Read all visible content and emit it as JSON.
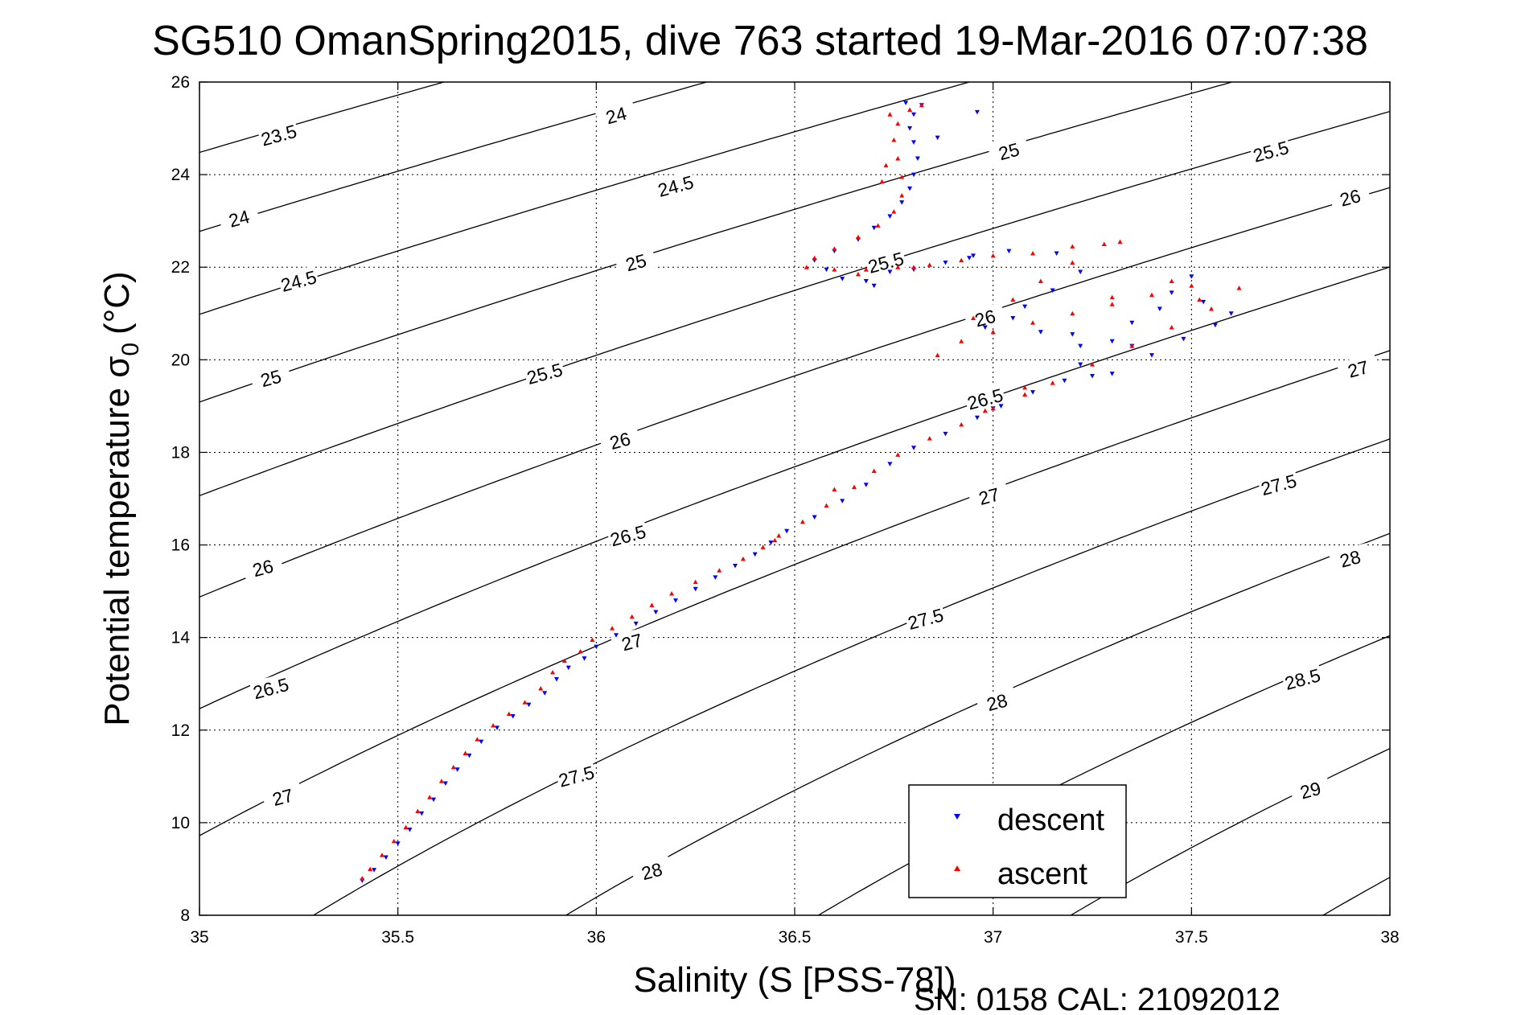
{
  "chart_data": {
    "type": "scatter",
    "title": "SG510 OmanSpring2015, dive 763 started 19-Mar-2016 07:07:38",
    "xlabel": "Salinity (S [PSS-78])",
    "ylabel_main": "Potential temperature σ",
    "ylabel_sub": "0",
    "ylabel_unit": "(°C)",
    "footer": "SN: 0158  CAL: 21092012",
    "xlim": [
      35,
      38
    ],
    "ylim": [
      8,
      26
    ],
    "xticks": [
      "35",
      "35.5",
      "36",
      "36.5",
      "37",
      "37.5",
      "38"
    ],
    "yticks": [
      "8",
      "10",
      "12",
      "14",
      "16",
      "18",
      "20",
      "22",
      "24",
      "26"
    ],
    "grid": true,
    "legend_position": "bottom-right",
    "contour_labels": [
      {
        "text": "23.5",
        "s": 35.2,
        "t": 24.85
      },
      {
        "text": "24",
        "s": 36.05,
        "t": 25.28
      },
      {
        "text": "24",
        "s": 35.1,
        "t": 23.05
      },
      {
        "text": "24.5",
        "s": 36.2,
        "t": 23.75
      },
      {
        "text": "24.5",
        "s": 35.25,
        "t": 21.7
      },
      {
        "text": "25",
        "s": 37.04,
        "t": 24.5
      },
      {
        "text": "25",
        "s": 36.1,
        "t": 22.1
      },
      {
        "text": "25",
        "s": 35.18,
        "t": 19.6
      },
      {
        "text": "25.5",
        "s": 37.7,
        "t": 24.5
      },
      {
        "text": "25.5",
        "s": 36.73,
        "t": 22.1
      },
      {
        "text": "25.5",
        "s": 35.87,
        "t": 19.7
      },
      {
        "text": "26",
        "s": 37.9,
        "t": 23.5
      },
      {
        "text": "26",
        "s": 36.98,
        "t": 20.9
      },
      {
        "text": "26",
        "s": 36.06,
        "t": 18.25
      },
      {
        "text": "26",
        "s": 35.16,
        "t": 15.5
      },
      {
        "text": "26.5",
        "s": 36.98,
        "t": 19.15
      },
      {
        "text": "26.5",
        "s": 36.08,
        "t": 16.2
      },
      {
        "text": "26.5",
        "s": 35.18,
        "t": 12.9
      },
      {
        "text": "27",
        "s": 37.92,
        "t": 19.8
      },
      {
        "text": "27",
        "s": 36.99,
        "t": 17.05
      },
      {
        "text": "27",
        "s": 36.09,
        "t": 13.9
      },
      {
        "text": "27",
        "s": 35.21,
        "t": 10.55
      },
      {
        "text": "27.5",
        "s": 37.72,
        "t": 17.3
      },
      {
        "text": "27.5",
        "s": 36.83,
        "t": 14.4
      },
      {
        "text": "27.5",
        "s": 35.95,
        "t": 11.0
      },
      {
        "text": "28",
        "s": 37.9,
        "t": 15.7
      },
      {
        "text": "28",
        "s": 37.01,
        "t": 12.6
      },
      {
        "text": "28",
        "s": 36.14,
        "t": 8.95
      },
      {
        "text": "28.5",
        "s": 37.78,
        "t": 13.1
      },
      {
        "text": "29",
        "s": 37.8,
        "t": 10.7
      }
    ],
    "series": [
      {
        "name": "descent",
        "color": "#0000ff",
        "marker": "triangle-down",
        "points": [
          [
            35.41,
            8.75
          ],
          [
            35.44,
            8.98
          ],
          [
            35.47,
            9.25
          ],
          [
            35.5,
            9.55
          ],
          [
            35.53,
            9.85
          ],
          [
            35.56,
            10.2
          ],
          [
            35.59,
            10.5
          ],
          [
            35.62,
            10.85
          ],
          [
            35.65,
            11.15
          ],
          [
            35.68,
            11.45
          ],
          [
            35.71,
            11.75
          ],
          [
            35.75,
            12.05
          ],
          [
            35.79,
            12.3
          ],
          [
            35.83,
            12.55
          ],
          [
            35.87,
            12.8
          ],
          [
            35.9,
            13.1
          ],
          [
            35.93,
            13.35
          ],
          [
            35.97,
            13.55
          ],
          [
            36.0,
            13.8
          ],
          [
            36.05,
            14.05
          ],
          [
            36.1,
            14.3
          ],
          [
            36.15,
            14.55
          ],
          [
            36.2,
            14.8
          ],
          [
            36.25,
            15.05
          ],
          [
            36.3,
            15.3
          ],
          [
            36.35,
            15.55
          ],
          [
            36.4,
            15.8
          ],
          [
            36.44,
            16.05
          ],
          [
            36.48,
            16.3
          ],
          [
            36.55,
            16.6
          ],
          [
            36.62,
            16.95
          ],
          [
            36.68,
            17.3
          ],
          [
            36.74,
            17.75
          ],
          [
            36.8,
            18.1
          ],
          [
            36.88,
            18.4
          ],
          [
            36.96,
            18.75
          ],
          [
            37.02,
            19.0
          ],
          [
            37.1,
            19.3
          ],
          [
            37.18,
            19.55
          ],
          [
            37.3,
            19.7
          ],
          [
            37.4,
            20.1
          ],
          [
            37.48,
            20.45
          ],
          [
            37.56,
            20.75
          ],
          [
            37.6,
            21.0
          ],
          [
            37.53,
            21.25
          ],
          [
            37.45,
            21.45
          ],
          [
            37.5,
            21.8
          ],
          [
            37.42,
            21.1
          ],
          [
            37.35,
            20.8
          ],
          [
            37.3,
            20.4
          ],
          [
            37.22,
            20.3
          ],
          [
            37.12,
            20.6
          ],
          [
            37.05,
            20.9
          ],
          [
            36.98,
            20.7
          ],
          [
            37.08,
            21.15
          ],
          [
            37.15,
            21.5
          ],
          [
            37.22,
            21.9
          ],
          [
            37.16,
            22.3
          ],
          [
            37.04,
            22.35
          ],
          [
            36.95,
            22.25
          ],
          [
            36.88,
            22.1
          ],
          [
            36.8,
            21.95
          ],
          [
            36.74,
            21.9
          ],
          [
            36.68,
            21.7
          ],
          [
            36.62,
            21.75
          ],
          [
            36.58,
            21.95
          ],
          [
            36.55,
            22.15
          ],
          [
            36.6,
            22.35
          ],
          [
            36.66,
            22.6
          ],
          [
            36.7,
            22.85
          ],
          [
            36.74,
            23.1
          ],
          [
            36.77,
            23.4
          ],
          [
            36.79,
            23.7
          ],
          [
            36.8,
            24.0
          ],
          [
            36.81,
            24.35
          ],
          [
            36.8,
            24.7
          ],
          [
            36.79,
            25.0
          ],
          [
            36.8,
            25.3
          ],
          [
            36.82,
            25.5
          ],
          [
            36.78,
            25.55
          ],
          [
            36.96,
            25.35
          ],
          [
            36.86,
            24.8
          ],
          [
            36.7,
            21.6
          ],
          [
            36.94,
            22.2
          ],
          [
            37.0,
            18.95
          ],
          [
            37.25,
            19.65
          ],
          [
            37.22,
            19.9
          ],
          [
            37.35,
            20.3
          ],
          [
            37.2,
            20.55
          ]
        ]
      },
      {
        "name": "ascent",
        "color": "#ff0000",
        "marker": "triangle-up",
        "points": [
          [
            35.41,
            8.8
          ],
          [
            35.43,
            9.0
          ],
          [
            35.46,
            9.3
          ],
          [
            35.49,
            9.6
          ],
          [
            35.52,
            9.9
          ],
          [
            35.55,
            10.25
          ],
          [
            35.58,
            10.55
          ],
          [
            35.61,
            10.9
          ],
          [
            35.64,
            11.2
          ],
          [
            35.67,
            11.5
          ],
          [
            35.7,
            11.8
          ],
          [
            35.74,
            12.1
          ],
          [
            35.78,
            12.35
          ],
          [
            35.82,
            12.6
          ],
          [
            35.86,
            12.9
          ],
          [
            35.89,
            13.25
          ],
          [
            35.92,
            13.5
          ],
          [
            35.96,
            13.7
          ],
          [
            35.99,
            13.95
          ],
          [
            36.04,
            14.2
          ],
          [
            36.09,
            14.45
          ],
          [
            36.14,
            14.7
          ],
          [
            36.19,
            14.95
          ],
          [
            36.25,
            15.2
          ],
          [
            36.31,
            15.45
          ],
          [
            36.37,
            15.7
          ],
          [
            36.42,
            15.95
          ],
          [
            36.46,
            16.2
          ],
          [
            36.52,
            16.5
          ],
          [
            36.58,
            16.85
          ],
          [
            36.65,
            17.25
          ],
          [
            36.7,
            17.6
          ],
          [
            36.76,
            17.95
          ],
          [
            36.84,
            18.3
          ],
          [
            36.92,
            18.6
          ],
          [
            37.0,
            18.95
          ],
          [
            37.08,
            19.25
          ],
          [
            37.15,
            19.5
          ],
          [
            37.25,
            19.9
          ],
          [
            37.35,
            20.3
          ],
          [
            37.45,
            20.7
          ],
          [
            37.55,
            21.1
          ],
          [
            37.62,
            21.55
          ],
          [
            37.5,
            21.6
          ],
          [
            37.4,
            21.4
          ],
          [
            37.3,
            21.2
          ],
          [
            37.2,
            21.0
          ],
          [
            37.1,
            20.8
          ],
          [
            37.0,
            20.6
          ],
          [
            36.92,
            20.4
          ],
          [
            36.86,
            20.1
          ],
          [
            36.95,
            20.9
          ],
          [
            37.05,
            21.3
          ],
          [
            37.12,
            21.7
          ],
          [
            37.2,
            22.1
          ],
          [
            37.28,
            22.5
          ],
          [
            37.32,
            22.55
          ],
          [
            37.2,
            22.45
          ],
          [
            37.1,
            22.3
          ],
          [
            37.0,
            22.25
          ],
          [
            36.92,
            22.15
          ],
          [
            36.84,
            22.05
          ],
          [
            36.76,
            22.0
          ],
          [
            36.68,
            21.95
          ],
          [
            36.6,
            21.95
          ],
          [
            36.53,
            22.0
          ],
          [
            36.55,
            22.2
          ],
          [
            36.6,
            22.4
          ],
          [
            36.66,
            22.65
          ],
          [
            36.71,
            22.9
          ],
          [
            36.75,
            23.2
          ],
          [
            36.77,
            23.55
          ],
          [
            36.77,
            23.95
          ],
          [
            36.76,
            24.35
          ],
          [
            36.75,
            24.75
          ],
          [
            36.76,
            25.1
          ],
          [
            36.79,
            25.4
          ],
          [
            36.82,
            25.5
          ],
          [
            36.74,
            25.3
          ],
          [
            36.73,
            24.2
          ],
          [
            36.72,
            23.85
          ],
          [
            36.66,
            21.85
          ],
          [
            36.8,
            22.0
          ],
          [
            37.3,
            21.35
          ],
          [
            37.45,
            21.7
          ],
          [
            37.52,
            21.3
          ],
          [
            36.98,
            18.9
          ],
          [
            37.08,
            19.4
          ],
          [
            36.6,
            17.2
          ],
          [
            36.45,
            16.1
          ]
        ]
      }
    ]
  }
}
